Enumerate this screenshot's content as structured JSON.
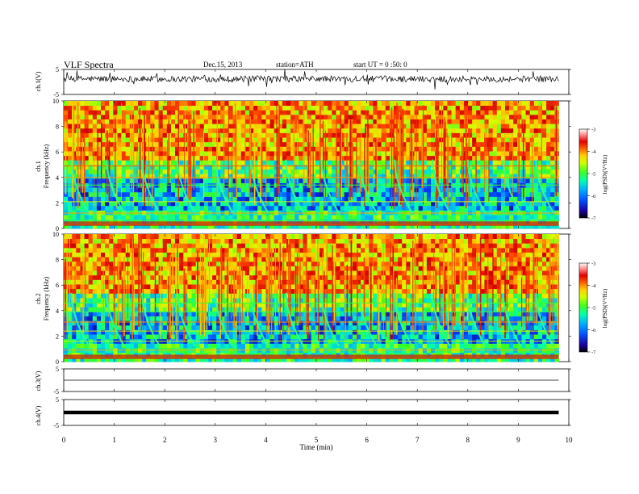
{
  "header": {
    "title": "VLF Spectra",
    "date": "Dec.15, 2013",
    "station": "station=ATH",
    "start": "start  UT =   0 :50: 0"
  },
  "chart_data": [
    {
      "type": "line",
      "panel": "ch1-waveform",
      "ylabel": "ch.1(V)",
      "ylim": [
        -5,
        5
      ],
      "yticks": [
        "5",
        "-5"
      ],
      "xlim": [
        0,
        10
      ],
      "color": "#000000"
    },
    {
      "type": "heatmap",
      "panel": "ch1-spectrogram",
      "ylabel": "Frequency (kHz)",
      "channel_label": "ch.1",
      "ylim": [
        0,
        10
      ],
      "yticks": [
        "0",
        "2",
        "4",
        "6",
        "8",
        "10"
      ],
      "xlim": [
        0,
        9.8
      ],
      "colorbar": {
        "label": "log(PSD)(V²/Hz)",
        "ticks": [
          "-3",
          "-4",
          "-5",
          "-6",
          "-7"
        ],
        "range": [
          -7,
          -3
        ]
      },
      "noise_max_khz": 6.5,
      "whistler_times_min": [
        0.15,
        0.85,
        1.55,
        2.25,
        3.0,
        3.7,
        4.4,
        5.1,
        5.85,
        6.55,
        7.3,
        8.0,
        8.7,
        9.35
      ],
      "lines_khz": [
        0.3,
        0.6,
        1.2,
        2.1,
        3.4,
        4.0,
        4.9
      ]
    },
    {
      "type": "heatmap",
      "panel": "ch2-spectrogram",
      "ylabel": "Frequency (kHz)",
      "channel_label": "ch.2",
      "ylim": [
        0,
        10
      ],
      "yticks": [
        "0",
        "2",
        "4",
        "6",
        "8",
        "10"
      ],
      "xlim": [
        0,
        9.8
      ],
      "colorbar": {
        "label": "log(PSD)(V²/Hz)",
        "ticks": [
          "-3",
          "-4",
          "-5",
          "-6",
          "-7"
        ],
        "range": [
          -7,
          -3
        ]
      },
      "noise_max_khz": 6.5,
      "whistler_times_min": [
        0.15,
        0.85,
        1.55,
        2.25,
        3.0,
        3.7,
        4.4,
        5.1,
        5.85,
        6.55,
        7.3,
        8.0,
        8.7,
        9.35
      ],
      "lines_khz": [
        0.3,
        0.9,
        1.6,
        2.4,
        3.1,
        3.9,
        4.6
      ]
    },
    {
      "type": "line",
      "panel": "ch3-waveform",
      "ylabel": "ch.3(V)",
      "ylim": [
        -5,
        5
      ],
      "yticks": [
        "5",
        "-5"
      ],
      "xlim": [
        0,
        10
      ]
    },
    {
      "type": "line",
      "panel": "ch4-waveform",
      "ylabel": "ch.4(V)",
      "ylim": [
        -5,
        5
      ],
      "yticks": [
        "5",
        "-5"
      ],
      "xlim": [
        0,
        10
      ]
    }
  ],
  "xaxis": {
    "label": "Time  (min)",
    "ticks": [
      "0",
      "1",
      "2",
      "3",
      "4",
      "5",
      "6",
      "7",
      "8",
      "9",
      "10"
    ]
  }
}
